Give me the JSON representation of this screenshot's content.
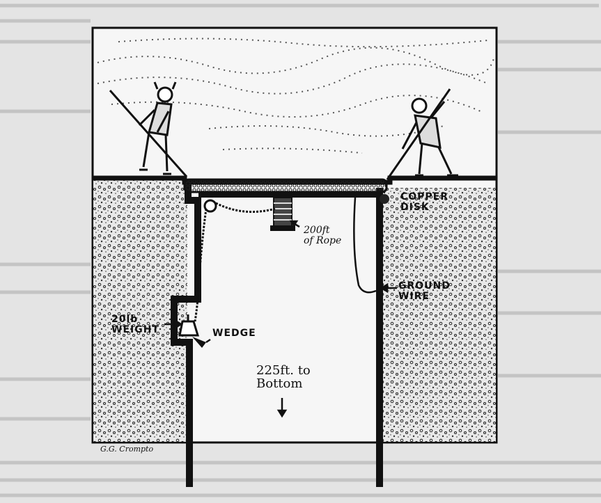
{
  "labels": {
    "copper_disk": "COPPER\nDISK",
    "rope_length": "200ft\nof Rope",
    "ground_wire": "GROUND\nWIRE",
    "weight": "20lb\nWEIGHT",
    "wedge": "WEDGE",
    "depth_note": "225ft. to\nBottom",
    "signature": "G.G. Crompto"
  },
  "colors": {
    "page": "#e4e4e4",
    "ink": "#111111",
    "frame_bg": "#f4f4f4",
    "soil": "#d9d9d9"
  }
}
